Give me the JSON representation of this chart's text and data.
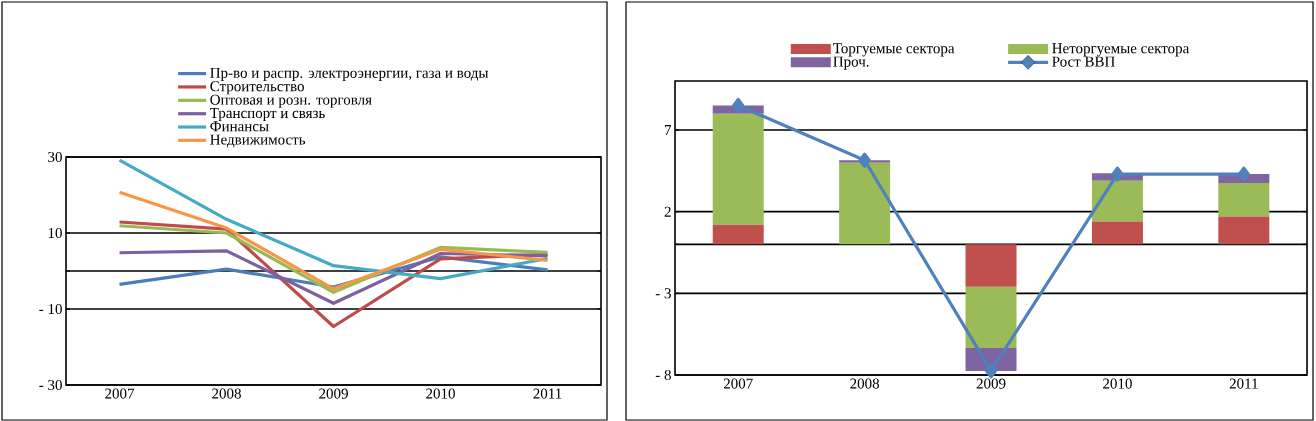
{
  "chart_data": [
    {
      "type": "line",
      "categories": [
        "2007",
        "2008",
        "2009",
        "2010",
        "2011"
      ],
      "ylim": [
        -30,
        30
      ],
      "yticks": [
        {
          "value": -30,
          "label": "- 30"
        },
        {
          "value": -10,
          "label": "- 10"
        },
        {
          "value": 0,
          "label": null
        },
        10,
        30
      ],
      "grid": "y",
      "legend": "top",
      "marker": "none",
      "line_style": "solid",
      "series": [
        {
          "name": "Пр-во и распр. электроэнергии, газа и воды",
          "color": "#4a7ebb",
          "values": [
            -3.5,
            0.5,
            -4.2,
            3.7,
            0.3
          ]
        },
        {
          "name": "Строительство",
          "color": "#be4b48",
          "values": [
            12.9,
            11,
            -14.6,
            3.2,
            4.4
          ]
        },
        {
          "name": "Оптовая и розн. торговля",
          "color": "#98b954",
          "values": [
            11.9,
            10,
            -5.6,
            6.2,
            4.9
          ]
        },
        {
          "name": "Транспорт и связь",
          "color": "#7d60a0",
          "values": [
            4.8,
            5.3,
            -8.5,
            4.6,
            4.0
          ]
        },
        {
          "name": "Финансы",
          "color": "#46aac5",
          "values": [
            29.2,
            13.6,
            1.4,
            -2.0,
            3.3
          ]
        },
        {
          "name": "Недвижимость",
          "color": "#f79646",
          "values": [
            20.7,
            11.3,
            -4.7,
            5.7,
            2.8
          ]
        }
      ]
    },
    {
      "type": "bar",
      "stacked": true,
      "categories": [
        "2007",
        "2008",
        "2009",
        "2010",
        "2011"
      ],
      "ylim": [
        -8,
        10
      ],
      "yticks": [
        {
          "value": -8,
          "label": "- 8"
        },
        {
          "value": -3,
          "label": "- 3"
        },
        {
          "value": 0,
          "label": null
        },
        2,
        7
      ],
      "grid": "y",
      "legend": "top",
      "series": [
        {
          "name": "Торгуемые сектора",
          "color": "#c0504d",
          "values": [
            1.2,
            0,
            -2.6,
            1.4,
            1.7
          ]
        },
        {
          "name": "Неторгуемые сектора",
          "color": "#9bbb59",
          "values": [
            6.8,
            5.0,
            -3.75,
            2.5,
            2.05
          ]
        },
        {
          "name": "Проч.",
          "color": "#8064a2",
          "values": [
            0.5,
            0.15,
            -1.4,
            0.45,
            0.55
          ]
        },
        {
          "name": "Рост ВВП",
          "type": "line",
          "marker": "diamond",
          "color": "#4f81bd",
          "values": [
            8.5,
            5.15,
            -7.75,
            4.3,
            4.3
          ]
        }
      ]
    }
  ]
}
